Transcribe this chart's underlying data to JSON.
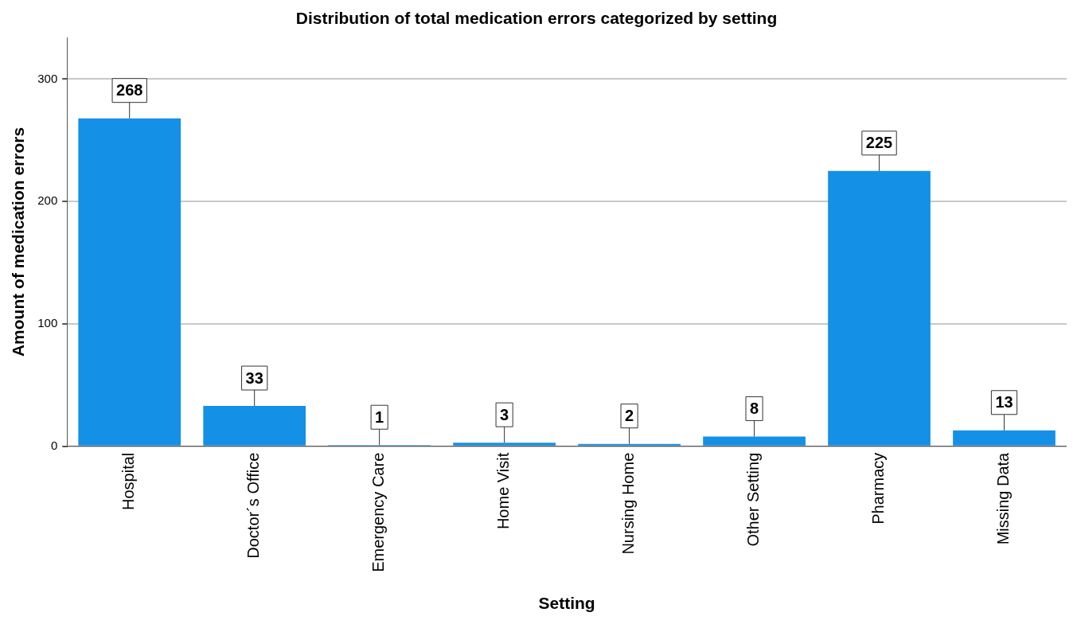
{
  "chart_data": {
    "type": "bar",
    "title": "Distribution of total medication errors categorized by setting",
    "xlabel": "Setting",
    "ylabel": "Amount of medication errors",
    "categories": [
      "Hospital",
      "Doctor´s Office",
      "Emergency Care",
      "Home Visit",
      "Nursing Home",
      "Other Setting",
      "Pharmacy",
      "Missing Data"
    ],
    "values": [
      268,
      33,
      1,
      3,
      2,
      8,
      225,
      13
    ],
    "color": "#1490e6",
    "ylim": [
      0,
      334
    ],
    "yticks": [
      0,
      100,
      200,
      300
    ],
    "grid": "y",
    "data_labels": true
  }
}
